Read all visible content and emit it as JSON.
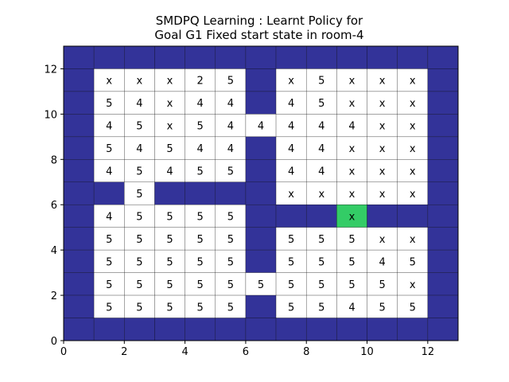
{
  "chart_data": {
    "type": "heatmap",
    "title_lines": [
      "SMDPQ Learning : Learnt Policy for",
      "Goal G1 Fixed start state in room-4"
    ],
    "xlim": [
      0,
      13
    ],
    "ylim": [
      0,
      13
    ],
    "xticks": [
      0,
      2,
      4,
      6,
      8,
      10,
      12
    ],
    "yticks": [
      0,
      2,
      4,
      6,
      8,
      10,
      12
    ],
    "colors": {
      "wall": "#333399",
      "free": "#ffffff",
      "goal": "#33cc66",
      "gridline": "#000000"
    },
    "legend_codes": {
      "W": "wall",
      ".": "free cell, no label",
      "x": "free cell labelled x",
      "2/4/5": "free cell labelled with that number",
      "G": "goal cell labelled x"
    },
    "rows_top_to_bottom": [
      [
        "W",
        "W",
        "W",
        "W",
        "W",
        "W",
        "W",
        "W",
        "W",
        "W",
        "W",
        "W",
        "W"
      ],
      [
        "W",
        "x",
        "x",
        "x",
        "2",
        "5",
        "W",
        "x",
        "5",
        "x",
        "x",
        "x",
        "W"
      ],
      [
        "W",
        "5",
        "4",
        "x",
        "4",
        "4",
        "W",
        "4",
        "5",
        "x",
        "x",
        "x",
        "W"
      ],
      [
        "W",
        "4",
        "5",
        "x",
        "5",
        "4",
        "4",
        "4",
        "4",
        "4",
        "x",
        "x",
        "W"
      ],
      [
        "W",
        "5",
        "4",
        "5",
        "4",
        "4",
        "W",
        "4",
        "4",
        "x",
        "x",
        "x",
        "W"
      ],
      [
        "W",
        "4",
        "5",
        "4",
        "5",
        "5",
        "W",
        "4",
        "4",
        "x",
        "x",
        "x",
        "W"
      ],
      [
        "W",
        "W",
        "5",
        "W",
        "W",
        "W",
        "W",
        "x",
        "x",
        "x",
        "x",
        "x",
        "W"
      ],
      [
        "W",
        "4",
        "5",
        "5",
        "5",
        "5",
        "W",
        "W",
        "W",
        "G",
        "W",
        "W",
        "W"
      ],
      [
        "W",
        "5",
        "5",
        "5",
        "5",
        "5",
        "W",
        "5",
        "5",
        "5",
        "x",
        "x",
        "W"
      ],
      [
        "W",
        "5",
        "5",
        "5",
        "5",
        "5",
        "W",
        "5",
        "5",
        "5",
        "4",
        "5",
        "W"
      ],
      [
        "W",
        "5",
        "5",
        "5",
        "5",
        "5",
        "5",
        "5",
        "5",
        "5",
        "5",
        "x",
        "W"
      ],
      [
        "W",
        "5",
        "5",
        "5",
        "5",
        "5",
        "W",
        "5",
        "5",
        "4",
        "5",
        "5",
        "W"
      ],
      [
        "W",
        "W",
        "W",
        "W",
        "W",
        "W",
        "W",
        "W",
        "W",
        "W",
        "W",
        "W",
        "W"
      ]
    ],
    "goal_label": "x"
  }
}
